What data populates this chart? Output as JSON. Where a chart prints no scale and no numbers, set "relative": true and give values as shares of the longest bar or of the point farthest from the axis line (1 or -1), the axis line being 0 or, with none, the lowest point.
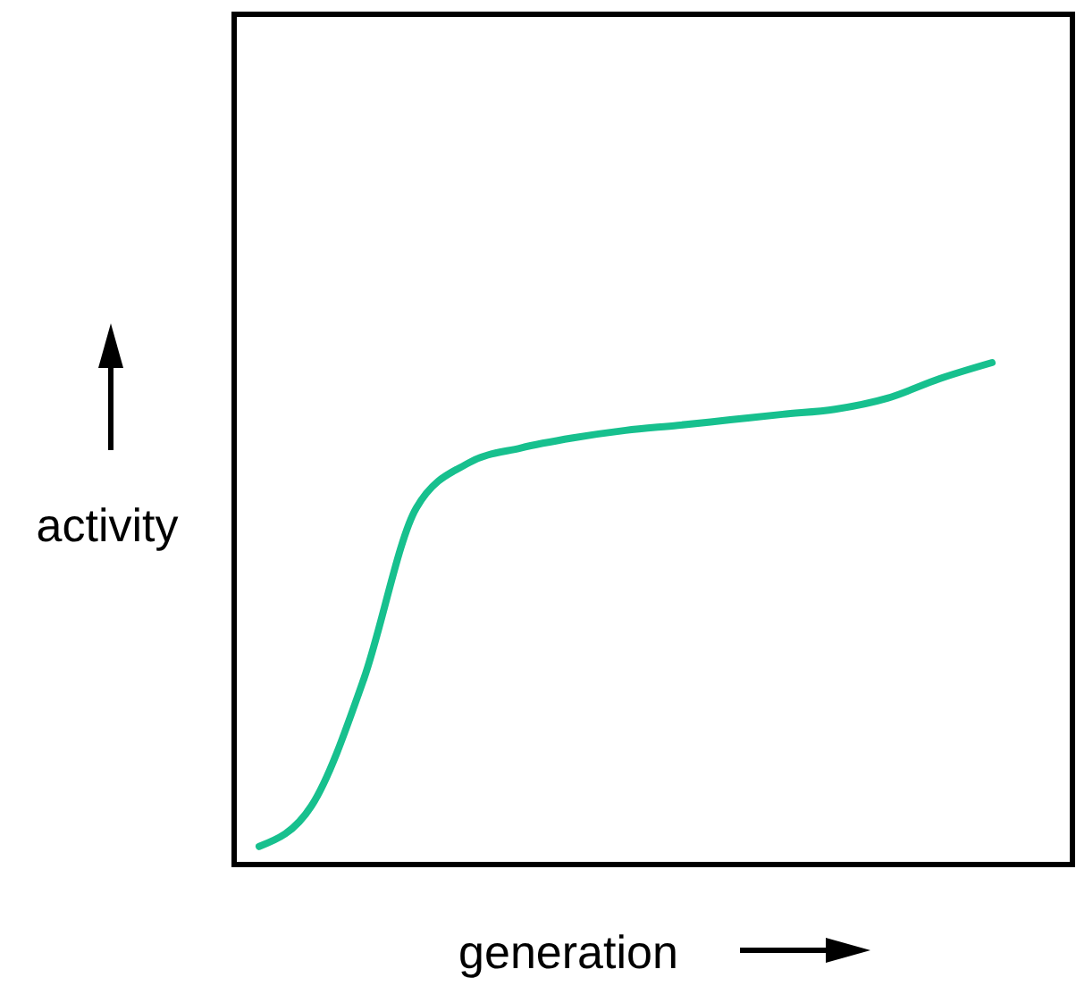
{
  "chart_data": {
    "type": "line",
    "xlabel": "generation",
    "ylabel": "activity",
    "relative": true,
    "categories": [
      null,
      null,
      null,
      null,
      null,
      null,
      null,
      null,
      null,
      null,
      null,
      null,
      null,
      null,
      null
    ],
    "series": [
      {
        "color": "#17c08e",
        "values": [
          0.036,
          0.117,
          0.37,
          0.71,
          0.8,
          0.83,
          0.85,
          0.865,
          0.875,
          0.886,
          0.897,
          0.907,
          0.929,
          0.968,
          1
        ]
      }
    ],
    "marker": "none",
    "line_style": "solid"
  }
}
